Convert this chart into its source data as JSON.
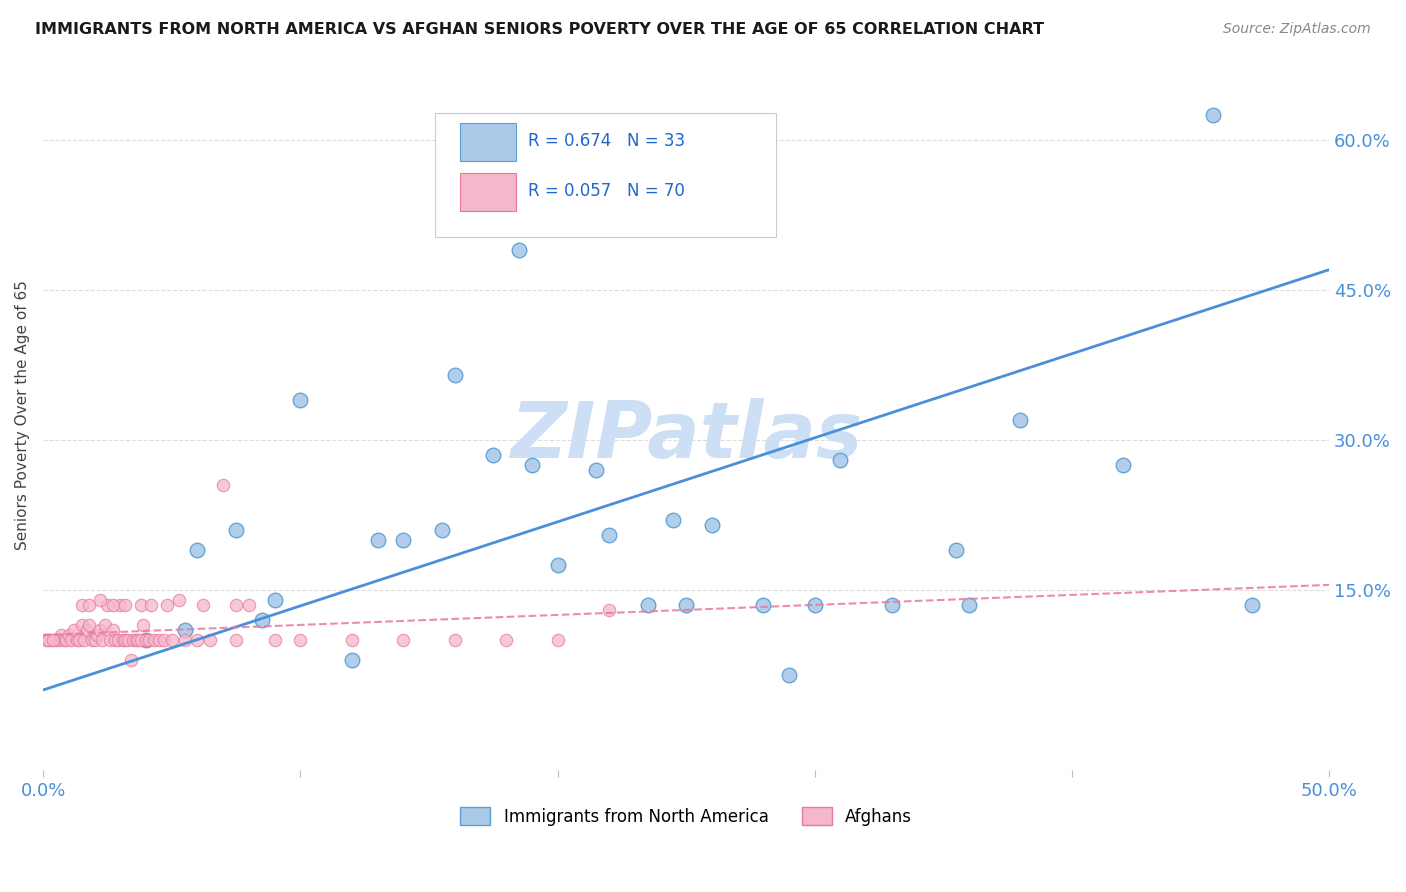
{
  "title": "IMMIGRANTS FROM NORTH AMERICA VS AFGHAN SENIORS POVERTY OVER THE AGE OF 65 CORRELATION CHART",
  "source": "Source: ZipAtlas.com",
  "ylabel": "Seniors Poverty Over the Age of 65",
  "xlim": [
    0,
    0.5
  ],
  "ylim": [
    -0.03,
    0.68
  ],
  "ytick_labels_right": [
    "15.0%",
    "30.0%",
    "45.0%",
    "60.0%"
  ],
  "ytick_values_right": [
    0.15,
    0.3,
    0.45,
    0.6
  ],
  "blue_color": "#aac9e8",
  "blue_edge_color": "#5a9fd4",
  "blue_line_color": "#4a90d9",
  "pink_color": "#f5b8cb",
  "pink_edge_color": "#e8789a",
  "pink_line_color": "#e8789a",
  "blue_trend_start_x": 0.0,
  "blue_trend_start_y": 0.05,
  "blue_trend_end_x": 0.5,
  "blue_trend_end_y": 0.47,
  "pink_trend_start_x": 0.0,
  "pink_trend_start_y": 0.105,
  "pink_trend_end_x": 0.5,
  "pink_trend_end_y": 0.155,
  "blue_x": [
    0.185,
    0.38,
    0.455,
    0.16,
    0.215,
    0.22,
    0.245,
    0.1,
    0.14,
    0.19,
    0.26,
    0.3,
    0.33,
    0.355,
    0.42,
    0.47,
    0.06,
    0.075,
    0.085,
    0.09,
    0.13,
    0.155,
    0.175,
    0.2,
    0.235,
    0.28,
    0.31,
    0.36,
    0.04,
    0.055,
    0.25,
    0.12,
    0.29
  ],
  "blue_y": [
    0.49,
    0.32,
    0.625,
    0.365,
    0.27,
    0.205,
    0.22,
    0.34,
    0.2,
    0.275,
    0.215,
    0.135,
    0.135,
    0.19,
    0.275,
    0.135,
    0.19,
    0.21,
    0.12,
    0.14,
    0.2,
    0.21,
    0.285,
    0.175,
    0.135,
    0.135,
    0.28,
    0.135,
    0.1,
    0.11,
    0.135,
    0.08,
    0.065
  ],
  "pink_x": [
    0.003,
    0.005,
    0.006,
    0.007,
    0.008,
    0.009,
    0.01,
    0.011,
    0.012,
    0.013,
    0.014,
    0.015,
    0.016,
    0.017,
    0.018,
    0.019,
    0.02,
    0.021,
    0.022,
    0.023,
    0.024,
    0.025,
    0.026,
    0.027,
    0.028,
    0.029,
    0.03,
    0.031,
    0.032,
    0.033,
    0.034,
    0.035,
    0.036,
    0.037,
    0.038,
    0.039,
    0.04,
    0.041,
    0.043,
    0.045,
    0.047,
    0.05,
    0.055,
    0.06,
    0.065,
    0.07,
    0.075,
    0.08,
    0.09,
    0.1,
    0.12,
    0.14,
    0.16,
    0.18,
    0.2,
    0.22,
    0.001,
    0.002,
    0.004,
    0.015,
    0.018,
    0.022,
    0.027,
    0.032,
    0.038,
    0.042,
    0.048,
    0.053,
    0.062,
    0.075
  ],
  "pink_y": [
    0.1,
    0.1,
    0.1,
    0.105,
    0.1,
    0.1,
    0.105,
    0.1,
    0.11,
    0.1,
    0.1,
    0.115,
    0.1,
    0.11,
    0.115,
    0.1,
    0.1,
    0.105,
    0.11,
    0.1,
    0.115,
    0.135,
    0.1,
    0.11,
    0.1,
    0.1,
    0.135,
    0.1,
    0.1,
    0.1,
    0.08,
    0.1,
    0.1,
    0.1,
    0.1,
    0.115,
    0.1,
    0.1,
    0.1,
    0.1,
    0.1,
    0.1,
    0.1,
    0.1,
    0.1,
    0.255,
    0.1,
    0.135,
    0.1,
    0.1,
    0.1,
    0.1,
    0.1,
    0.1,
    0.1,
    0.13,
    0.1,
    0.1,
    0.1,
    0.135,
    0.135,
    0.14,
    0.135,
    0.135,
    0.135,
    0.135,
    0.135,
    0.14,
    0.135,
    0.135
  ],
  "watermark": "ZIPatlas",
  "watermark_color": "#cddff5",
  "background_color": "#ffffff",
  "grid_color": "#dddddd"
}
